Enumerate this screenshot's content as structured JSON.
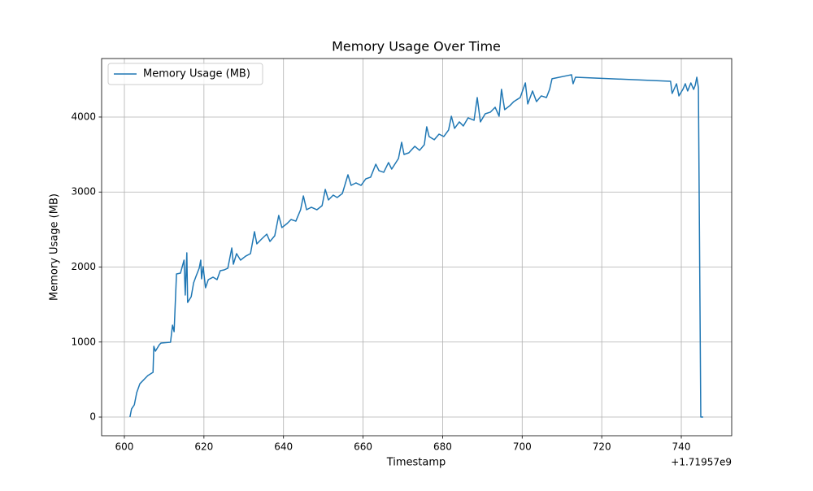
{
  "chart_data": {
    "type": "line",
    "title": "Memory Usage Over Time",
    "x_label": "Timestamp",
    "y_label": "Memory Usage (MB)",
    "x_offset_label": "+1.71957e9",
    "x": [
      601.4,
      601.8,
      602.5,
      603.1,
      603.9,
      605.1,
      605.9,
      607.2,
      607.4,
      607.8,
      608.8,
      609.2,
      611.6,
      612.1,
      612.5,
      613.1,
      614.1,
      615.0,
      615.3,
      615.7,
      615.9,
      616.8,
      617.4,
      618.0,
      618.8,
      619.2,
      619.4,
      619.8,
      620.4,
      621.1,
      622.3,
      623.3,
      624.1,
      625.1,
      626.0,
      627.0,
      627.4,
      628.2,
      629.2,
      630.5,
      631.7,
      632.7,
      633.3,
      634.5,
      635.8,
      636.6,
      637.8,
      638.8,
      639.6,
      640.9,
      641.9,
      643.1,
      644.3,
      645.0,
      645.8,
      647.0,
      648.4,
      649.7,
      650.5,
      651.3,
      652.5,
      653.5,
      654.8,
      656.2,
      657.0,
      658.2,
      659.5,
      660.7,
      661.9,
      663.2,
      664.0,
      665.2,
      666.4,
      667.2,
      668.9,
      669.7,
      670.3,
      671.5,
      673.0,
      674.2,
      675.4,
      676.0,
      676.6,
      677.9,
      679.1,
      680.3,
      681.5,
      682.2,
      683.0,
      684.2,
      685.2,
      686.4,
      687.9,
      688.7,
      689.5,
      690.7,
      692.0,
      693.2,
      694.2,
      694.8,
      695.6,
      696.9,
      697.9,
      699.5,
      700.8,
      701.4,
      702.6,
      703.6,
      704.8,
      706.1,
      706.9,
      707.5,
      712.4,
      712.8,
      713.4,
      737.3,
      737.7,
      738.8,
      739.4,
      740.4,
      741.0,
      741.6,
      742.4,
      743.1,
      743.5,
      743.9,
      744.3,
      744.9,
      745.5
    ],
    "series": [
      {
        "name": "Memory Usage (MB)",
        "color": "#1f77b4",
        "values": [
          0,
          108,
          163,
          325,
          444,
          510,
          553,
          596,
          943,
          878,
          965,
          986,
          997,
          1225,
          1138,
          1908,
          1919,
          2092,
          1626,
          2190,
          1528,
          1604,
          1789,
          1875,
          1984,
          2092,
          1843,
          2005,
          1724,
          1832,
          1865,
          1832,
          1951,
          1962,
          1984,
          2255,
          2038,
          2179,
          2092,
          2146,
          2179,
          2472,
          2309,
          2374,
          2439,
          2341,
          2417,
          2688,
          2526,
          2580,
          2634,
          2612,
          2764,
          2948,
          2764,
          2797,
          2764,
          2818,
          3035,
          2894,
          2959,
          2927,
          2981,
          3230,
          3089,
          3122,
          3089,
          3176,
          3198,
          3371,
          3285,
          3263,
          3393,
          3306,
          3447,
          3664,
          3501,
          3523,
          3610,
          3556,
          3631,
          3870,
          3740,
          3697,
          3772,
          3740,
          3827,
          4011,
          3848,
          3935,
          3881,
          3989,
          3957,
          4260,
          3935,
          4043,
          4065,
          4130,
          4011,
          4369,
          4098,
          4152,
          4206,
          4260,
          4455,
          4174,
          4347,
          4206,
          4282,
          4260,
          4369,
          4510,
          4564,
          4444,
          4531,
          4477,
          4314,
          4444,
          4282,
          4369,
          4444,
          4347,
          4455,
          4369,
          4423,
          4531,
          4390,
          0,
          0
        ]
      }
    ],
    "xlim": [
      594.28,
      752.67
    ],
    "xticks": [
      600,
      620,
      640,
      660,
      680,
      700,
      720,
      740
    ],
    "ylim": [
      -249,
      4780
    ],
    "yticks": [
      0,
      1000,
      2000,
      3000,
      4000
    ],
    "grid": true,
    "legend": "upper-left"
  }
}
